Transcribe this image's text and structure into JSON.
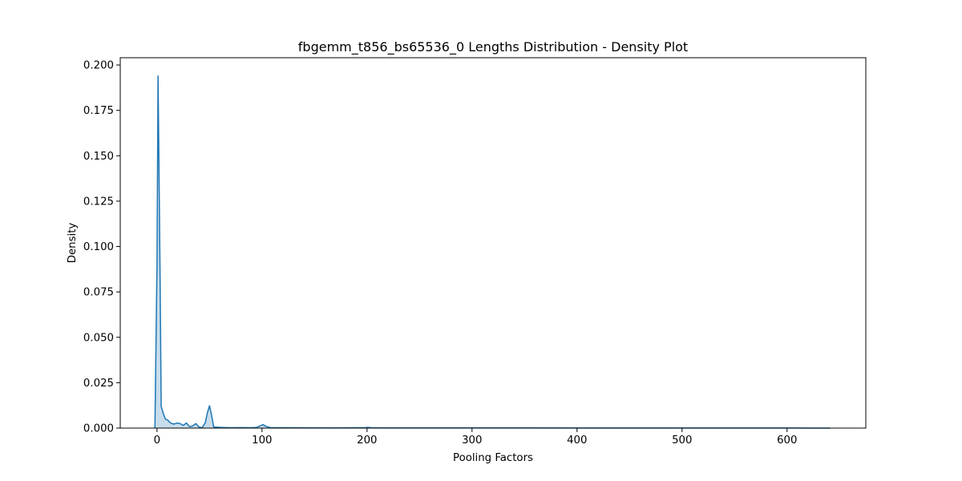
{
  "chart_data": {
    "type": "area",
    "title": "fbgemm_t856_bs65536_0 Lengths Distribution - Density Plot",
    "xlabel": "Pooling Factors",
    "ylabel": "Density",
    "xlim": [
      -35,
      675
    ],
    "ylim": [
      0,
      0.204
    ],
    "xticks": [
      0,
      100,
      200,
      300,
      400,
      500,
      600
    ],
    "yticks": [
      0.0,
      0.025,
      0.05,
      0.075,
      0.1,
      0.125,
      0.15,
      0.175,
      0.2
    ],
    "ytick_labels": [
      "0.000",
      "0.025",
      "0.050",
      "0.075",
      "0.100",
      "0.125",
      "0.150",
      "0.175",
      "0.200"
    ],
    "xtick_labels": [
      "0",
      "100",
      "200",
      "300",
      "400",
      "500",
      "600"
    ],
    "grid": false,
    "line_color": "#1f77b4",
    "fill_color": "#1f77b4",
    "fill_opacity": 0.25,
    "series": [
      {
        "x": [
          -2,
          0,
          1,
          3,
          4,
          6,
          8,
          10,
          13,
          16,
          19,
          22,
          25,
          28,
          31,
          34,
          37,
          40,
          43,
          46,
          48,
          50,
          52,
          54,
          60,
          70,
          80,
          90,
          95,
          98,
          101,
          104,
          108,
          115,
          130,
          150,
          170,
          190,
          198,
          201,
          204,
          215,
          250,
          300,
          350,
          400,
          450,
          500,
          550,
          600,
          641
        ],
        "y": [
          0,
          0.09,
          0.194,
          0.08,
          0.012,
          0.008,
          0.005,
          0.0045,
          0.0028,
          0.0022,
          0.0028,
          0.0025,
          0.0015,
          0.0028,
          0.0008,
          0.0012,
          0.0025,
          0.0006,
          0.0002,
          0.003,
          0.0085,
          0.0123,
          0.007,
          0.0006,
          0.0004,
          0.0002,
          0.0003,
          0.0002,
          0.0004,
          0.0012,
          0.0019,
          0.0009,
          0.0003,
          0.0002,
          0.0002,
          0.00015,
          0.0001,
          0.0002,
          0.0003,
          0.0004,
          0.0002,
          0.0001,
          0.0001,
          0.0001,
          0.0001,
          8e-05,
          8e-05,
          5e-05,
          5e-05,
          4e-05,
          0
        ]
      }
    ]
  }
}
